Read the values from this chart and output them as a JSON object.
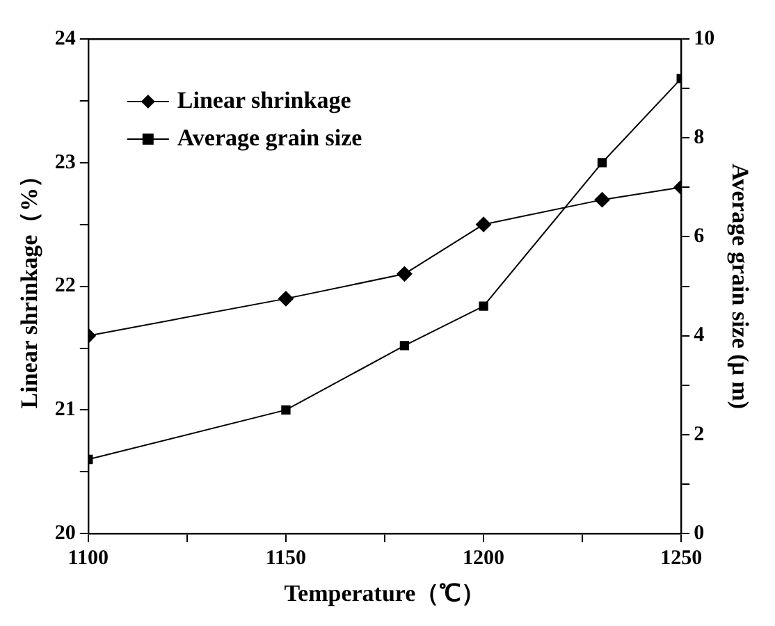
{
  "chart_data": {
    "type": "line",
    "xlabel": "Temperature（℃）",
    "ylabel": "Linear shrinkage（%）",
    "y2label": "Average grain size (μ m)",
    "x": [
      1100,
      1150,
      1180,
      1200,
      1230,
      1250
    ],
    "series": [
      {
        "name": "Linear shrinkage",
        "color": "#000000",
        "values": [
          21.6,
          21.9,
          22.1,
          22.5,
          22.7,
          22.8
        ],
        "marker": "diamond"
      },
      {
        "name": "Average grain size",
        "color": "#000000",
        "values": [
          1.5,
          2.5,
          3.8,
          4.6,
          7.5,
          9.2
        ],
        "axis": "y2",
        "marker": "square"
      }
    ],
    "xlim": [
      1100,
      1250
    ],
    "xticks": [
      1100,
      {
        "value": 1125,
        "label": null
      },
      1150,
      {
        "value": 1175,
        "label": null
      },
      1200,
      {
        "value": 1225,
        "label": null
      },
      1250
    ],
    "ylim": [
      20,
      24
    ],
    "yticks": [
      20,
      {
        "value": 20.5,
        "label": null
      },
      21,
      {
        "value": 21.5,
        "label": null
      },
      22,
      {
        "value": 22.5,
        "label": null
      },
      23,
      {
        "value": 23.5,
        "label": null
      },
      24
    ],
    "y2lim": [
      0,
      10
    ],
    "y2ticks": [
      0,
      {
        "value": 1,
        "label": null
      },
      2,
      {
        "value": 3,
        "label": null
      },
      4,
      {
        "value": 5,
        "label": null
      },
      6,
      {
        "value": 7,
        "label": null
      },
      8,
      {
        "value": 9,
        "label": null
      },
      10
    ],
    "grid": false,
    "legend": "top left",
    "line_style": "solid"
  }
}
